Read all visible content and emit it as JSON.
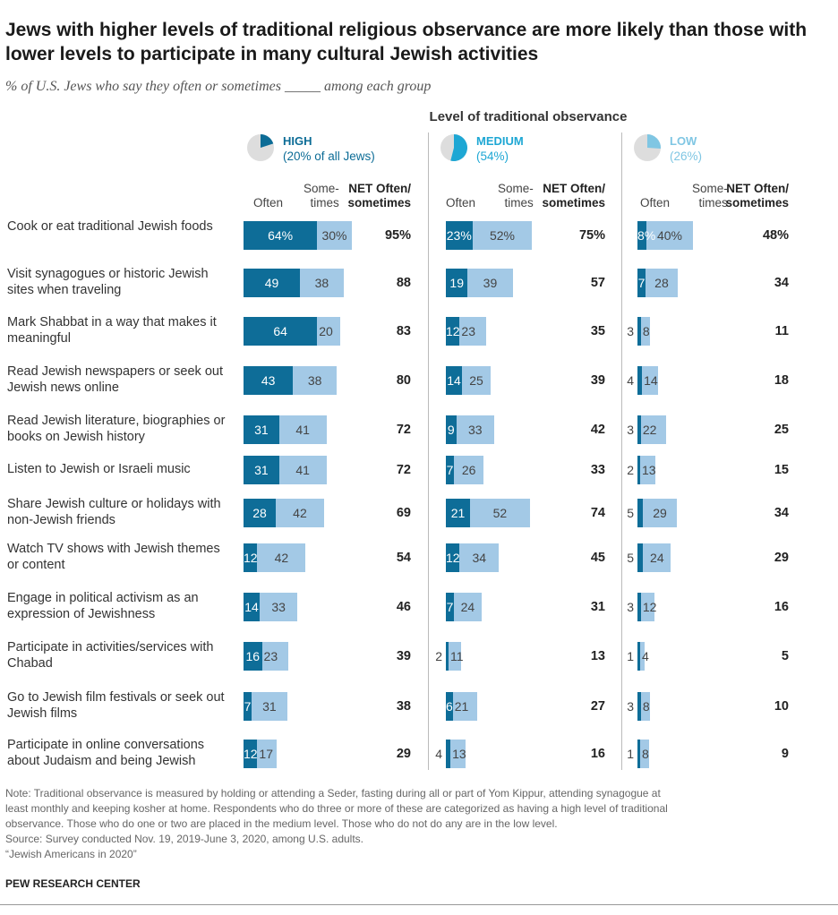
{
  "header": {
    "title": "Jews with higher levels of traditional religious observance are more likely than those with lower levels to participate in many cultural Jewish activities",
    "subtitle": "% of U.S. Jews who say they often or sometimes _____ among each group",
    "column_group_title": "Level of traditional observance"
  },
  "groups": [
    {
      "name": "HIGH",
      "share": "(20% of all Jews)",
      "color": "#0c6c96"
    },
    {
      "name": "MEDIUM",
      "share": "(54%)",
      "color": "#1ea7d4"
    },
    {
      "name": "LOW",
      "share": "(26%)",
      "color": "#7fc6e3"
    }
  ],
  "columns": {
    "often": "Often",
    "sometimes": "Some-\ntimes",
    "net": "NET Often/\nsometimes"
  },
  "colors": {
    "often": "#0e6d98",
    "sometimes": "#a3c9e6",
    "pie_bg": "#dddddd"
  },
  "chart_data": {
    "type": "bar",
    "subtype": "stacked-horizontal",
    "title": "Jews with higher levels of traditional religious observance are more likely than those with lower levels to participate in many cultural Jewish activities",
    "xlabel": "",
    "ylabel": "",
    "categories": [
      "Cook or eat traditional Jewish foods",
      "Visit synagogues or historic Jewish sites when traveling",
      "Mark Shabbat in a way that makes it meaningful",
      "Read Jewish newspapers or seek out Jewish news online",
      "Read Jewish literature, biographies or books on Jewish history",
      "Listen to Jewish or Israeli music",
      "Share Jewish culture or holidays with non-Jewish friends",
      "Watch TV shows with Jewish themes or content",
      "Engage in political activism as an expression of Jewishness",
      "Participate in activities/services with Chabad",
      "Go to Jewish film festivals or seek out Jewish films",
      "Participate in online conversations about Judaism and being Jewish"
    ],
    "panels": [
      {
        "group": "HIGH",
        "often": [
          64,
          49,
          64,
          43,
          31,
          31,
          28,
          12,
          14,
          16,
          7,
          12
        ],
        "sometimes": [
          30,
          38,
          20,
          38,
          41,
          41,
          42,
          42,
          33,
          23,
          31,
          17
        ],
        "net": [
          "95%",
          "88",
          "83",
          "80",
          "72",
          "72",
          "69",
          "54",
          "46",
          "39",
          "38",
          "29"
        ],
        "often_labels": [
          "64%",
          "49",
          "64",
          "43",
          "31",
          "31",
          "28",
          "12",
          "14",
          "16",
          "7",
          "12"
        ],
        "sometimes_labels": [
          "30%",
          "38",
          "20",
          "38",
          "41",
          "41",
          "42",
          "42",
          "33",
          "23",
          "31",
          "17"
        ]
      },
      {
        "group": "MEDIUM",
        "often": [
          23,
          19,
          12,
          14,
          9,
          7,
          21,
          12,
          7,
          2,
          6,
          4
        ],
        "sometimes": [
          52,
          39,
          23,
          25,
          33,
          26,
          52,
          34,
          24,
          11,
          21,
          13
        ],
        "net": [
          "75%",
          "57",
          "35",
          "39",
          "42",
          "33",
          "74",
          "45",
          "31",
          "13",
          "27",
          "16"
        ],
        "often_labels": [
          "23%",
          "19",
          "12",
          "14",
          "9",
          "7",
          "21",
          "12",
          "7",
          "2",
          "6",
          "4"
        ],
        "sometimes_labels": [
          "52%",
          "39",
          "23",
          "25",
          "33",
          "26",
          "52",
          "34",
          "24",
          "11",
          "21",
          "13"
        ]
      },
      {
        "group": "LOW",
        "often": [
          8,
          7,
          3,
          4,
          3,
          2,
          5,
          5,
          3,
          1,
          3,
          1
        ],
        "sometimes": [
          40,
          28,
          8,
          14,
          22,
          13,
          29,
          24,
          12,
          4,
          8,
          8
        ],
        "net": [
          "48%",
          "34",
          "11",
          "18",
          "25",
          "15",
          "34",
          "29",
          "16",
          "5",
          "10",
          "9"
        ],
        "often_labels": [
          "8%",
          "7",
          "3",
          "4",
          "3",
          "2",
          "5",
          "5",
          "3",
          "1",
          "3",
          "1"
        ],
        "sometimes_labels": [
          "40%",
          "28",
          "8",
          "14",
          "22",
          "13",
          "29",
          "24",
          "12",
          "4",
          "8",
          "8"
        ]
      }
    ]
  },
  "footer": {
    "note_lines": [
      "Note: Traditional observance is measured by holding or attending a Seder, fasting during all or part of Yom Kippur, attending synagogue at",
      "least monthly and keeping kosher at home. Respondents who do three or more of these are categorized as having a high level of traditional",
      "observance. Those who do one or two are placed in the medium level. Those who do not do any are in the low level."
    ],
    "source": "Source: Survey conducted Nov. 19, 2019-June 3, 2020, among U.S. adults.",
    "report": "“Jewish Americans in 2020”",
    "brand": "PEW RESEARCH CENTER"
  }
}
